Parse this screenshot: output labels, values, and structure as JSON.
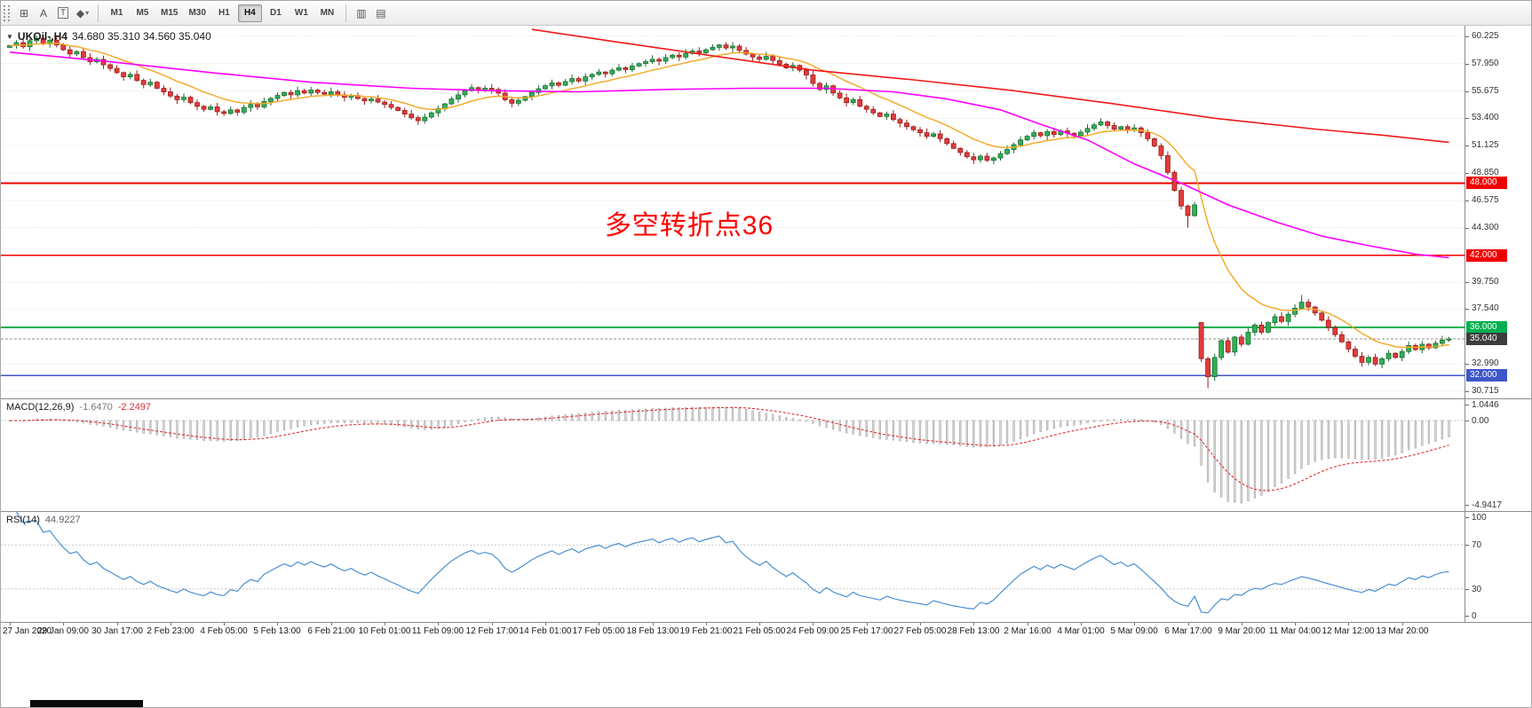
{
  "toolbar": {
    "tools": [
      {
        "name": "grid-tool-icon",
        "glyph": "⊞"
      },
      {
        "name": "text-tool-icon",
        "glyph": "A"
      },
      {
        "name": "label-tool-icon",
        "glyph": "T"
      },
      {
        "name": "shapes-tool-icon",
        "glyph": "◆",
        "caret": "▾"
      }
    ],
    "timeframes": [
      "M1",
      "M5",
      "M15",
      "M30",
      "H1",
      "H4",
      "D1",
      "W1",
      "MN"
    ],
    "active_timeframe": "H4",
    "right_icons": [
      {
        "name": "chart-window-icon",
        "glyph": "▥"
      },
      {
        "name": "template-icon",
        "glyph": "▤"
      }
    ]
  },
  "chart": {
    "header": {
      "symbol": "UKOil-,H4",
      "ohlc": "34.680 35.310 34.560 35.040"
    },
    "annotation": {
      "text": "多空转折点36",
      "color": "#ff0000"
    },
    "price_scale": {
      "range": [
        30.1,
        61.1
      ],
      "ticks": [
        "60.225",
        "57.950",
        "55.675",
        "53.400",
        "51.125",
        "48.850",
        "46.575",
        "44.300",
        "39.750",
        "37.540",
        "32.990",
        "30.715"
      ]
    },
    "levels": [
      {
        "label": "48.000",
        "value": 48.0,
        "color": "#f00000"
      },
      {
        "label": "42.000",
        "value": 42.0,
        "color": "#f00000"
      },
      {
        "label": "36.000",
        "value": 36.0,
        "color": "#00b050"
      },
      {
        "label": "32.000",
        "value": 32.0,
        "color": "#3f56c8"
      }
    ],
    "current_price": {
      "label": "35.040",
      "value": 35.04,
      "badge_color": "#3c3c3c",
      "line_color": "#909090"
    }
  },
  "chart_data": {
    "type": "candlestick",
    "symbol": "UKOil-",
    "timeframe": "H4",
    "first_open": 59.3,
    "closes": [
      59.45,
      59.7,
      59.35,
      59.85,
      60.05,
      59.6,
      59.9,
      59.5,
      59.1,
      58.75,
      58.95,
      58.45,
      58.1,
      58.3,
      57.85,
      57.55,
      57.2,
      56.85,
      57.05,
      56.55,
      56.2,
      56.4,
      55.9,
      55.6,
      55.25,
      54.95,
      55.15,
      54.7,
      54.4,
      54.15,
      54.35,
      53.95,
      53.8,
      54.1,
      53.9,
      54.3,
      54.55,
      54.35,
      54.8,
      55.05,
      55.3,
      55.55,
      55.35,
      55.7,
      55.5,
      55.75,
      55.55,
      55.4,
      55.6,
      55.35,
      55.15,
      55.3,
      55.05,
      54.85,
      55.0,
      54.75,
      54.55,
      54.3,
      54.05,
      53.75,
      53.45,
      53.2,
      53.5,
      53.85,
      54.2,
      54.6,
      55.0,
      55.35,
      55.7,
      55.95,
      55.75,
      55.9,
      55.8,
      55.5,
      54.95,
      54.65,
      54.9,
      55.2,
      55.55,
      55.85,
      56.1,
      56.35,
      56.15,
      56.45,
      56.7,
      56.5,
      56.85,
      57.05,
      57.25,
      57.1,
      57.4,
      57.6,
      57.45,
      57.75,
      57.95,
      58.1,
      58.3,
      58.15,
      58.45,
      58.65,
      58.5,
      58.8,
      59.0,
      58.85,
      59.1,
      59.3,
      59.5,
      59.25,
      59.4,
      59.05,
      58.75,
      58.5,
      58.3,
      58.55,
      58.2,
      57.9,
      57.6,
      57.8,
      57.4,
      57.0,
      56.3,
      55.8,
      56.1,
      55.5,
      55.1,
      54.7,
      54.95,
      54.4,
      54.15,
      53.85,
      53.55,
      53.75,
      53.3,
      53.0,
      52.7,
      52.45,
      52.2,
      51.9,
      52.1,
      51.7,
      51.3,
      50.9,
      50.55,
      50.2,
      49.95,
      50.25,
      49.9,
      50.1,
      50.45,
      50.8,
      51.2,
      51.6,
      51.9,
      52.2,
      51.95,
      52.3,
      52.05,
      52.35,
      52.15,
      51.95,
      52.25,
      52.55,
      52.85,
      53.1,
      52.8,
      52.5,
      52.7,
      52.4,
      52.6,
      52.2,
      51.7,
      51.1,
      50.3,
      48.9,
      47.4,
      46.1,
      45.3,
      46.2,
      33.4,
      31.9,
      33.5,
      34.9,
      33.95,
      35.2,
      34.6,
      35.6,
      36.2,
      35.6,
      36.4,
      36.9,
      36.5,
      37.1,
      37.6,
      38.1,
      37.7,
      37.2,
      36.6,
      36.0,
      35.4,
      34.8,
      34.2,
      33.6,
      33.1,
      33.5,
      32.95,
      33.4,
      33.85,
      33.5,
      34.0,
      34.5,
      34.15,
      34.6,
      34.3,
      34.68,
      34.95,
      35.04
    ],
    "open_overrides": {
      "178": 36.4
    },
    "low_overrides": {
      "176": 44.3,
      "179": 30.95
    },
    "high_overrides": {
      "193": 38.7
    },
    "up_fill": "#2eb353",
    "up_stroke": "#1b6b33",
    "down_fill": "#e23b3b",
    "down_stroke": "#97201c",
    "label_every": 8,
    "ma_fast": {
      "name": "ma-orange-fast",
      "color": "#f5a623",
      "period": 13
    },
    "ma_mid": {
      "name": "ma-magenta-slow",
      "color": "#ff00ff",
      "points": [
        [
          0,
          58.9
        ],
        [
          15,
          58.1
        ],
        [
          30,
          57.2
        ],
        [
          45,
          56.4
        ],
        [
          60,
          55.9
        ],
        [
          72,
          55.7
        ],
        [
          85,
          55.6
        ],
        [
          98,
          55.8
        ],
        [
          110,
          55.9
        ],
        [
          122,
          55.9
        ],
        [
          132,
          55.6
        ],
        [
          140,
          55.0
        ],
        [
          148,
          54.1
        ],
        [
          154,
          52.9
        ],
        [
          161,
          51.6
        ],
        [
          168,
          49.6
        ],
        [
          175,
          48.0
        ],
        [
          182,
          46.2
        ],
        [
          189,
          44.8
        ],
        [
          196,
          43.6
        ],
        [
          203,
          42.8
        ],
        [
          210,
          42.1
        ],
        [
          215,
          41.8
        ]
      ]
    },
    "ma_slow": {
      "name": "ma-red-slowest",
      "color": "#f01818",
      "points": [
        [
          78,
          60.8
        ],
        [
          90,
          59.8
        ],
        [
          105,
          58.6
        ],
        [
          120,
          57.4
        ],
        [
          135,
          56.6
        ],
        [
          150,
          55.7
        ],
        [
          165,
          54.6
        ],
        [
          180,
          53.4
        ],
        [
          195,
          52.5
        ],
        [
          205,
          52.0
        ],
        [
          215,
          51.4
        ]
      ]
    }
  },
  "macd_panel": {
    "label": {
      "name": "MACD(12,26,9)",
      "main": "-1.6470",
      "signal": "-2.2497"
    },
    "range": [
      -5.3,
      1.25
    ],
    "ticks": [
      {
        "label": "1.0446",
        "value": 1.0446
      },
      {
        "label": "0.00",
        "value": 0
      },
      {
        "label": "-4.9417",
        "value": -4.9417
      }
    ],
    "params": {
      "fast": 12,
      "slow": 26,
      "signal": 9
    },
    "histogram_fill": "#d6d6d6",
    "histogram_stroke": "#9d9d9d",
    "signal_color": "#e03030"
  },
  "rsi_panel": {
    "label": {
      "name": "RSI(14)",
      "value": "44.9227"
    },
    "period": 14,
    "range": [
      0,
      100
    ],
    "levels": [
      70,
      30
    ],
    "ticks": [
      {
        "label": "100",
        "value": 100
      },
      {
        "label": "70",
        "value": 70
      },
      {
        "label": "30",
        "value": 30
      },
      {
        "label": "0",
        "value": 0
      }
    ],
    "line_color": "#4a90d2"
  },
  "time_axis": [
    "27 Jan 2020",
    "29 Jan 09:00",
    "30 Jan 17:00",
    "2 Feb 23:00",
    "4 Feb 05:00",
    "5 Feb 13:00",
    "6 Feb 21:00",
    "10 Feb 01:00",
    "11 Feb 09:00",
    "12 Feb 17:00",
    "14 Feb 01:00",
    "17 Feb 05:00",
    "18 Feb 13:00",
    "19 Feb 21:00",
    "21 Feb 05:00",
    "24 Feb 09:00",
    "25 Feb 17:00",
    "27 Feb 05:00",
    "28 Feb 13:00",
    "2 Mar 16:00",
    "4 Mar 01:00",
    "5 Mar 09:00",
    "6 Mar 17:00",
    "9 Mar 20:00",
    "11 Mar 04:00",
    "12 Mar 12:00",
    "13 Mar 20:00"
  ]
}
